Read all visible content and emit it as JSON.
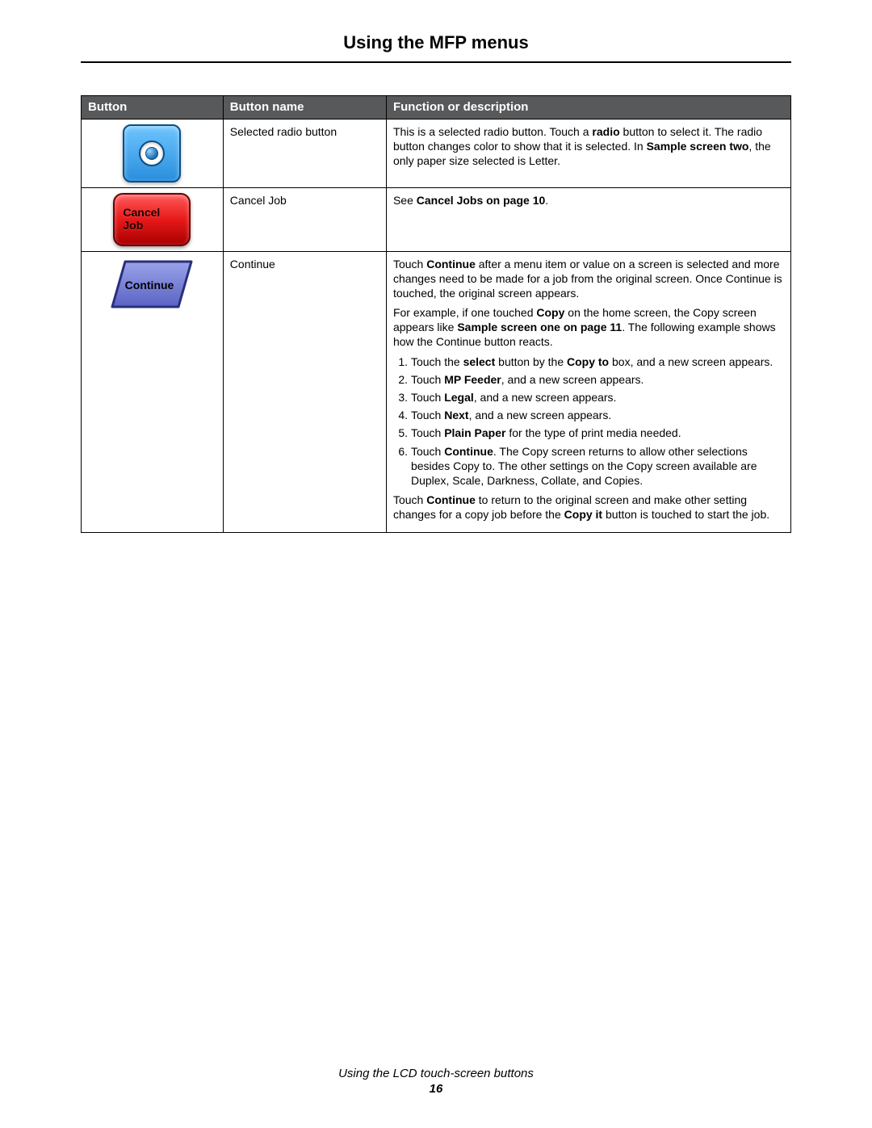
{
  "title": "Using the MFP menus",
  "footer_text": "Using the LCD touch-screen buttons",
  "page_number": "16",
  "table": {
    "headers": {
      "button": "Button",
      "name": "Button name",
      "desc": "Function or description"
    },
    "rows": {
      "radio": {
        "name": "Selected radio button",
        "desc_html": "This is a selected radio button. Touch a <b>radio</b> button to select it. The radio button changes color to show that it is selected. In <b>Sample screen two</b>, the only paper size selected is Letter.",
        "colors": {
          "bg_top": "#6ec5ff",
          "bg_bottom": "#2a8edc",
          "border": "#0b4e85"
        }
      },
      "cancel": {
        "name": "Cancel Job",
        "desc_html": "See <b>Cancel Jobs on page 10</b>.",
        "label": "Cancel\nJob",
        "colors": {
          "bg_top": "#ff5a5a",
          "bg_bottom": "#a80000",
          "border": "#6b0000"
        }
      },
      "continue": {
        "name": "Continue",
        "label": "Continue",
        "colors": {
          "fill_top": "#9aa3e8",
          "fill_bottom": "#5a63c4",
          "stroke": "#2a2f7a"
        },
        "desc_intro_html": "Touch <b>Continue</b> after a menu item or value on a screen is selected and more changes need to be made for a job from the original screen. Once Continue is touched, the original screen appears.",
        "desc_example_html": "For example, if one touched <b>Copy</b> on the home screen, the Copy screen appears like <b>Sample screen one on page 11</b>. The following example shows how the Continue button reacts.",
        "steps": [
          "Touch the <b>select</b> button by the <b>Copy to</b> box, and a new screen appears.",
          "Touch <b>MP Feeder</b>, and a new screen appears.",
          "Touch <b>Legal</b>, and a new screen appears.",
          "Touch <b>Next</b>, and a new screen appears.",
          "Touch <b>Plain Paper</b> for the type of print media needed.",
          "Touch <b>Continue</b>. The Copy screen returns to allow other selections besides Copy to. The other settings on the Copy screen available are Duplex, Scale, Darkness, Collate, and Copies."
        ],
        "desc_outro_html": "Touch <b>Continue</b> to return to the original screen and make other setting changes for a copy job before the <b>Copy it</b> button is touched to start the job."
      }
    }
  }
}
